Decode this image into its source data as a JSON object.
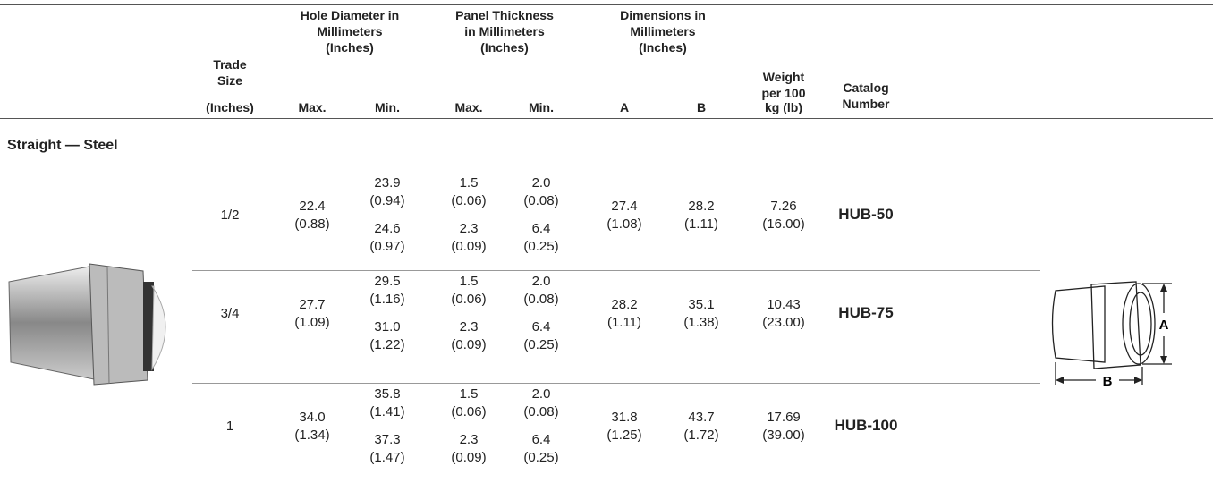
{
  "header": {
    "trade_size": "Trade Size",
    "trade_size_unit": "(Inches)",
    "groups": [
      "Hole Diameter in Millimeters (Inches)",
      "Panel Thickness in Millimeters (Inches)",
      "Dimensions in Millimeters (Inches)"
    ],
    "sub": [
      "Max.",
      "Min.",
      "Max.",
      "Min.",
      "A",
      "B"
    ],
    "weight": "Weight per 100",
    "weight_unit": "kg (lb)",
    "catalog": "Catalog Number"
  },
  "section": "Straight — Steel",
  "rows": [
    {
      "trade_size": "1/2",
      "hole_max": {
        "mm": "22.4",
        "in": "(0.88)"
      },
      "hole_min": [
        {
          "mm": "23.9",
          "in": "(0.94)"
        },
        {
          "mm": "24.6",
          "in": "(0.97)"
        }
      ],
      "panel_max": [
        {
          "mm": "1.5",
          "in": "(0.06)"
        },
        {
          "mm": "2.3",
          "in": "(0.09)"
        }
      ],
      "panel_min": [
        {
          "mm": "2.0",
          "in": "(0.08)"
        },
        {
          "mm": "6.4",
          "in": "(0.25)"
        }
      ],
      "dim_a": {
        "mm": "27.4",
        "in": "(1.08)"
      },
      "dim_b": {
        "mm": "28.2",
        "in": "(1.11)"
      },
      "weight": {
        "mm": "7.26",
        "in": "(16.00)"
      },
      "catalog": "HUB-50"
    },
    {
      "trade_size": "3/4",
      "hole_max": {
        "mm": "27.7",
        "in": "(1.09)"
      },
      "hole_min": [
        {
          "mm": "29.5",
          "in": "(1.16)"
        },
        {
          "mm": "31.0",
          "in": "(1.22)"
        }
      ],
      "panel_max": [
        {
          "mm": "1.5",
          "in": "(0.06)"
        },
        {
          "mm": "2.3",
          "in": "(0.09)"
        }
      ],
      "panel_min": [
        {
          "mm": "2.0",
          "in": "(0.08)"
        },
        {
          "mm": "6.4",
          "in": "(0.25)"
        }
      ],
      "dim_a": {
        "mm": "28.2",
        "in": "(1.11)"
      },
      "dim_b": {
        "mm": "35.1",
        "in": "(1.38)"
      },
      "weight": {
        "mm": "10.43",
        "in": "(23.00)"
      },
      "catalog": "HUB-75"
    },
    {
      "trade_size": "1",
      "hole_max": {
        "mm": "34.0",
        "in": "(1.34)"
      },
      "hole_min": [
        {
          "mm": "35.8",
          "in": "(1.41)"
        },
        {
          "mm": "37.3",
          "in": "(1.47)"
        }
      ],
      "panel_max": [
        {
          "mm": "1.5",
          "in": "(0.06)"
        },
        {
          "mm": "2.3",
          "in": "(0.09)"
        }
      ],
      "panel_min": [
        {
          "mm": "2.0",
          "in": "(0.08)"
        },
        {
          "mm": "6.4",
          "in": "(0.25)"
        }
      ],
      "dim_a": {
        "mm": "31.8",
        "in": "(1.25)"
      },
      "dim_b": {
        "mm": "43.7",
        "in": "(1.72)"
      },
      "weight": {
        "mm": "17.69",
        "in": "(39.00)"
      },
      "catalog": "HUB-100"
    }
  ],
  "diagram": {
    "label_a": "A",
    "label_b": "B"
  }
}
